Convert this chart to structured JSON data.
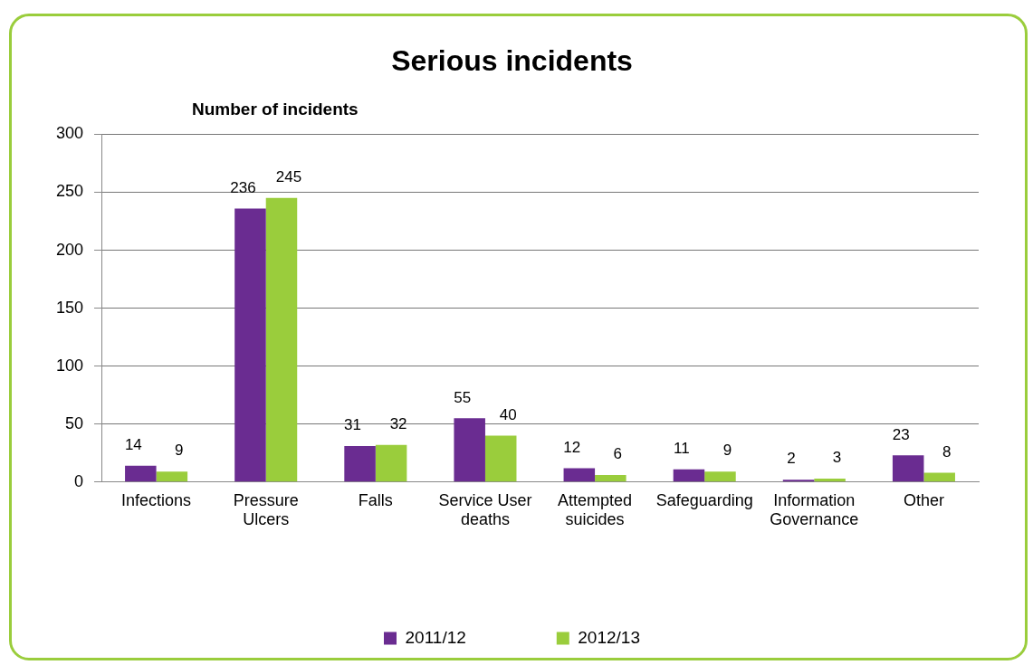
{
  "chart_data": {
    "type": "bar",
    "title": "Serious incidents",
    "ylabel": "Number of incidents",
    "categories": [
      "Infections",
      "Pressure Ulcers",
      "Falls",
      "Service User deaths",
      "Attempted suicides",
      "Safeguarding",
      "Information Governance",
      "Other"
    ],
    "series": [
      {
        "name": "2011/12",
        "color": "#6a2c91",
        "values": [
          14,
          236,
          31,
          55,
          12,
          11,
          2,
          23
        ]
      },
      {
        "name": "2012/13",
        "color": "#9acd3c",
        "values": [
          9,
          245,
          32,
          40,
          6,
          9,
          3,
          8
        ]
      }
    ],
    "ylim": [
      0,
      300
    ],
    "yticks": [
      0,
      50,
      100,
      150,
      200,
      250,
      300
    ],
    "grid": "y",
    "legend": "bottom",
    "data_labels": true
  }
}
